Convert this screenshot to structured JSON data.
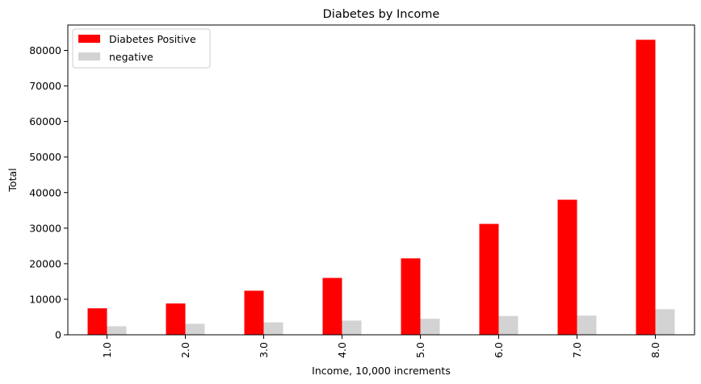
{
  "chart_data": {
    "type": "bar",
    "title": "Diabetes by Income",
    "xlabel": "Income, 10,000 increments",
    "ylabel": "Total",
    "categories": [
      "1.0",
      "2.0",
      "3.0",
      "4.0",
      "5.0",
      "6.0",
      "7.0",
      "8.0"
    ],
    "series": [
      {
        "name": "Diabetes Positive",
        "color": "#ff0000",
        "values": [
          7450,
          8800,
          12400,
          16000,
          21500,
          31200,
          38000,
          83000
        ]
      },
      {
        "name": "negative",
        "color": "#d3d3d3",
        "values": [
          2400,
          3100,
          3500,
          4000,
          4500,
          5300,
          5400,
          7200
        ]
      }
    ],
    "yticks": [
      0,
      10000,
      20000,
      30000,
      40000,
      50000,
      60000,
      70000,
      80000
    ],
    "ylim": [
      0,
      87150
    ],
    "legend": "top-left",
    "grid": false
  }
}
